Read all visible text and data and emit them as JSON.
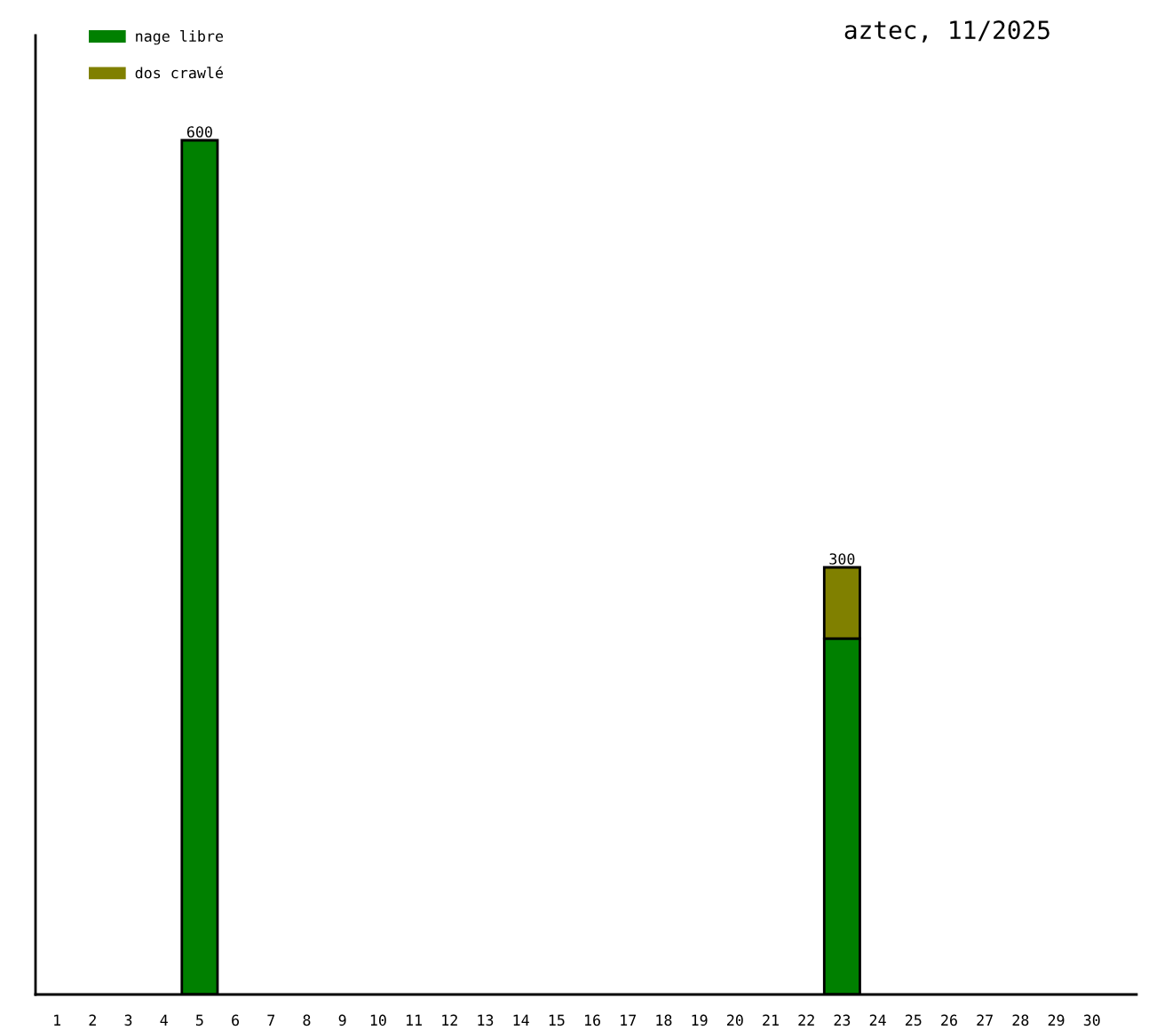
{
  "chart_data": {
    "type": "bar",
    "title": "aztec, 11/2025",
    "stacked": true,
    "legend": "top left",
    "tick_labels": "x",
    "categories": [
      "1",
      "2",
      "3",
      "4",
      "5",
      "6",
      "7",
      "8",
      "9",
      "10",
      "11",
      "12",
      "13",
      "14",
      "15",
      "16",
      "17",
      "18",
      "19",
      "20",
      "21",
      "22",
      "23",
      "24",
      "25",
      "26",
      "27",
      "28",
      "29",
      "30"
    ],
    "series": [
      {
        "name": "nage libre",
        "color": "#008000",
        "values": [
          null,
          null,
          null,
          null,
          600,
          null,
          null,
          null,
          null,
          null,
          null,
          null,
          null,
          null,
          null,
          null,
          null,
          null,
          null,
          null,
          null,
          null,
          250,
          null,
          null,
          null,
          null,
          null,
          null,
          null
        ],
        "value_labels": [
          null,
          null,
          null,
          null,
          "600",
          null,
          null,
          null,
          null,
          null,
          null,
          null,
          null,
          null,
          null,
          null,
          null,
          null,
          null,
          null,
          null,
          null,
          null,
          null,
          null,
          null,
          null,
          null,
          null,
          null
        ]
      },
      {
        "name": "dos crawlé",
        "color": "#808000",
        "values": [
          null,
          null,
          null,
          null,
          null,
          null,
          null,
          null,
          null,
          null,
          null,
          null,
          null,
          null,
          null,
          null,
          null,
          null,
          null,
          null,
          null,
          null,
          50,
          null,
          null,
          null,
          null,
          null,
          null,
          null
        ]
      }
    ],
    "totals": [
      null,
      null,
      null,
      null,
      null,
      null,
      null,
      null,
      null,
      null,
      null,
      null,
      null,
      null,
      null,
      null,
      null,
      null,
      null,
      null,
      null,
      null,
      "300",
      null,
      null,
      null,
      null,
      null,
      null,
      null
    ]
  }
}
